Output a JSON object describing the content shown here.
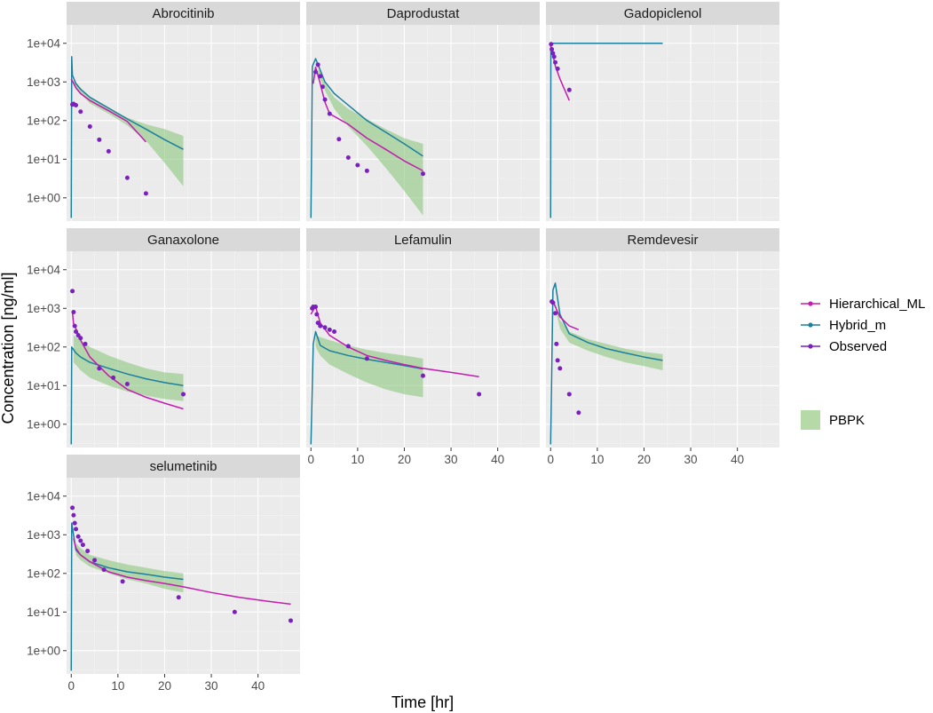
{
  "chart_data": {
    "type": "line",
    "layout": "facet-grid",
    "xlabel": "Time [hr]",
    "ylabel": "Concentration [ng/ml]",
    "y_scale": "log10",
    "ylim": [
      0.25,
      30000
    ],
    "xlim": [
      -1,
      49
    ],
    "y_ticks": [
      {
        "value": 1,
        "label": "1e+00"
      },
      {
        "value": 10,
        "label": "1e+01"
      },
      {
        "value": 100,
        "label": "1e+02"
      },
      {
        "value": 1000,
        "label": "1e+03"
      },
      {
        "value": 10000,
        "label": "1e+04"
      }
    ],
    "x_ticks": [
      {
        "value": 0,
        "label": "0"
      },
      {
        "value": 10,
        "label": "10"
      },
      {
        "value": 20,
        "label": "20"
      },
      {
        "value": 30,
        "label": "30"
      },
      {
        "value": 40,
        "label": "40"
      }
    ],
    "grid": true,
    "legend_position": "right",
    "legend": {
      "lines": [
        {
          "name": "Hierarchical_ML",
          "color": "#c51bb0"
        },
        {
          "name": "Hybrid_m",
          "color": "#1b7f9e"
        },
        {
          "name": "Observed",
          "color": "#7b1fbf"
        }
      ],
      "fill": {
        "name": "PBPK",
        "color": "#8cc77f"
      }
    },
    "panels": [
      {
        "title": "Abrocitinib",
        "hybrid": [
          [
            0,
            0.3
          ],
          [
            0.1,
            4500
          ],
          [
            0.25,
            1500
          ],
          [
            1,
            900
          ],
          [
            2,
            650
          ],
          [
            4,
            400
          ],
          [
            8,
            210
          ],
          [
            12,
            110
          ],
          [
            16,
            60
          ],
          [
            20,
            32
          ],
          [
            24,
            18
          ]
        ],
        "hierarchical": [
          [
            0,
            1200
          ],
          [
            1,
            700
          ],
          [
            2,
            500
          ],
          [
            4,
            330
          ],
          [
            8,
            180
          ],
          [
            12,
            95
          ],
          [
            16,
            28
          ]
        ],
        "observed": [
          [
            0.25,
            260
          ],
          [
            0.5,
            270
          ],
          [
            1,
            250
          ],
          [
            2,
            170
          ],
          [
            4,
            70
          ],
          [
            6,
            32
          ],
          [
            8,
            16
          ],
          [
            12,
            3.3
          ],
          [
            16,
            1.3
          ]
        ],
        "pbpk_upper": [
          [
            0.5,
            1200
          ],
          [
            2,
            700
          ],
          [
            4,
            400
          ],
          [
            8,
            210
          ],
          [
            12,
            120
          ],
          [
            16,
            80
          ],
          [
            20,
            60
          ],
          [
            24,
            40
          ]
        ],
        "pbpk_lower": [
          [
            0.5,
            900
          ],
          [
            2,
            500
          ],
          [
            4,
            280
          ],
          [
            8,
            150
          ],
          [
            12,
            75
          ],
          [
            16,
            30
          ],
          [
            20,
            8
          ],
          [
            24,
            2
          ]
        ]
      },
      {
        "title": "Daprodustat",
        "hybrid": [
          [
            0,
            0.3
          ],
          [
            0.3,
            2500
          ],
          [
            1,
            4000
          ],
          [
            2,
            2000
          ],
          [
            3,
            1000
          ],
          [
            5,
            500
          ],
          [
            8,
            250
          ],
          [
            12,
            100
          ],
          [
            16,
            50
          ],
          [
            20,
            25
          ],
          [
            24,
            12
          ]
        ],
        "hierarchical": [
          [
            0.5,
            900
          ],
          [
            1,
            2400
          ],
          [
            2,
            900
          ],
          [
            3,
            300
          ],
          [
            4,
            150
          ],
          [
            8,
            80
          ],
          [
            12,
            35
          ],
          [
            16,
            18
          ],
          [
            20,
            9
          ],
          [
            24,
            5
          ]
        ],
        "observed": [
          [
            1,
            1800
          ],
          [
            1.5,
            2800
          ],
          [
            2,
            1400
          ],
          [
            2.5,
            750
          ],
          [
            3,
            350
          ],
          [
            4,
            150
          ],
          [
            6,
            33
          ],
          [
            8,
            11
          ],
          [
            10,
            7
          ],
          [
            12,
            5
          ],
          [
            24,
            4.2
          ]
        ],
        "pbpk_upper": [
          [
            1.5,
            2200
          ],
          [
            2,
            1800
          ],
          [
            3,
            900
          ],
          [
            5,
            400
          ],
          [
            8,
            200
          ],
          [
            12,
            110
          ],
          [
            16,
            60
          ],
          [
            20,
            35
          ],
          [
            24,
            25
          ]
        ],
        "pbpk_lower": [
          [
            1.5,
            1500
          ],
          [
            2,
            1200
          ],
          [
            3,
            600
          ],
          [
            5,
            200
          ],
          [
            8,
            70
          ],
          [
            12,
            22
          ],
          [
            16,
            6
          ],
          [
            20,
            1.5
          ],
          [
            24,
            0.35
          ]
        ]
      },
      {
        "title": "Gadopiclenol",
        "hybrid": [
          [
            0,
            0.3
          ],
          [
            0.05,
            10000
          ],
          [
            24,
            10000
          ]
        ],
        "hierarchical": [
          [
            0,
            9000
          ],
          [
            0.5,
            5000
          ],
          [
            1,
            2600
          ],
          [
            2,
            1200
          ],
          [
            4,
            330
          ]
        ],
        "observed": [
          [
            0.1,
            9500
          ],
          [
            0.25,
            7000
          ],
          [
            0.5,
            5500
          ],
          [
            0.75,
            4500
          ],
          [
            1,
            3200
          ],
          [
            1.5,
            2200
          ],
          [
            4,
            620
          ]
        ],
        "pbpk_upper": [],
        "pbpk_lower": []
      },
      {
        "title": "Ganaxolone",
        "hybrid": [
          [
            0,
            0.3
          ],
          [
            0.1,
            100
          ],
          [
            1,
            70
          ],
          [
            2,
            55
          ],
          [
            4,
            40
          ],
          [
            8,
            28
          ],
          [
            12,
            20
          ],
          [
            16,
            15
          ],
          [
            20,
            12
          ],
          [
            24,
            10
          ]
        ],
        "hierarchical": [
          [
            0.25,
            800
          ],
          [
            0.5,
            400
          ],
          [
            1,
            300
          ],
          [
            2,
            150
          ],
          [
            4,
            55
          ],
          [
            8,
            18
          ],
          [
            12,
            8
          ],
          [
            16,
            5
          ],
          [
            20,
            3.5
          ],
          [
            24,
            2.5
          ]
        ],
        "observed": [
          [
            0.25,
            2800
          ],
          [
            0.5,
            800
          ],
          [
            0.75,
            350
          ],
          [
            1,
            250
          ],
          [
            1.5,
            200
          ],
          [
            2,
            170
          ],
          [
            3,
            120
          ],
          [
            6,
            28
          ],
          [
            9,
            16
          ],
          [
            12,
            11
          ],
          [
            24,
            6
          ]
        ],
        "pbpk_upper": [
          [
            0.5,
            200
          ],
          [
            2,
            150
          ],
          [
            4,
            100
          ],
          [
            8,
            60
          ],
          [
            12,
            40
          ],
          [
            16,
            28
          ],
          [
            20,
            22
          ],
          [
            24,
            20
          ]
        ],
        "pbpk_lower": [
          [
            0.5,
            40
          ],
          [
            2,
            25
          ],
          [
            4,
            16
          ],
          [
            8,
            10
          ],
          [
            12,
            7
          ],
          [
            16,
            5.5
          ],
          [
            20,
            4.5
          ],
          [
            24,
            4
          ]
        ]
      },
      {
        "title": "Lefamulin",
        "hybrid": [
          [
            0,
            0.3
          ],
          [
            0.5,
            120
          ],
          [
            1,
            250
          ],
          [
            2,
            110
          ],
          [
            4,
            80
          ],
          [
            8,
            60
          ],
          [
            12,
            48
          ],
          [
            16,
            40
          ],
          [
            20,
            33
          ],
          [
            24,
            27
          ]
        ],
        "hierarchical": [
          [
            0,
            700
          ],
          [
            0.5,
            900
          ],
          [
            1,
            1100
          ],
          [
            2,
            420
          ],
          [
            4,
            200
          ],
          [
            8,
            100
          ],
          [
            12,
            60
          ],
          [
            16,
            45
          ],
          [
            20,
            35
          ],
          [
            24,
            28
          ],
          [
            30,
            22
          ],
          [
            36,
            17
          ]
        ],
        "observed": [
          [
            0.25,
            1000
          ],
          [
            0.5,
            1100
          ],
          [
            1,
            1100
          ],
          [
            1.25,
            700
          ],
          [
            1.5,
            420
          ],
          [
            2,
            350
          ],
          [
            3,
            320
          ],
          [
            4,
            280
          ],
          [
            5,
            250
          ],
          [
            8,
            105
          ],
          [
            12,
            50
          ],
          [
            24,
            18
          ],
          [
            36,
            6
          ]
        ],
        "pbpk_upper": [
          [
            1,
            200
          ],
          [
            2,
            180
          ],
          [
            4,
            150
          ],
          [
            8,
            110
          ],
          [
            12,
            85
          ],
          [
            16,
            70
          ],
          [
            20,
            60
          ],
          [
            24,
            50
          ]
        ],
        "pbpk_lower": [
          [
            1,
            100
          ],
          [
            2,
            60
          ],
          [
            4,
            35
          ],
          [
            8,
            20
          ],
          [
            12,
            12
          ],
          [
            16,
            8
          ],
          [
            20,
            6
          ],
          [
            24,
            5
          ]
        ]
      },
      {
        "title": "Remdevesir",
        "hybrid": [
          [
            0,
            0.3
          ],
          [
            0.5,
            3000
          ],
          [
            1,
            4500
          ],
          [
            2,
            700
          ],
          [
            4,
            220
          ],
          [
            8,
            130
          ],
          [
            12,
            90
          ],
          [
            16,
            70
          ],
          [
            20,
            55
          ],
          [
            24,
            45
          ]
        ],
        "hierarchical": [
          [
            0.5,
            1500
          ],
          [
            1,
            1100
          ],
          [
            2,
            600
          ],
          [
            4,
            350
          ],
          [
            6,
            280
          ]
        ],
        "observed": [
          [
            0.25,
            1500
          ],
          [
            0.5,
            1400
          ],
          [
            1,
            750
          ],
          [
            1.25,
            120
          ],
          [
            1.5,
            45
          ],
          [
            2,
            28
          ],
          [
            4,
            6
          ],
          [
            6,
            2
          ]
        ],
        "pbpk_upper": [
          [
            1,
            1500
          ],
          [
            2,
            500
          ],
          [
            4,
            250
          ],
          [
            8,
            160
          ],
          [
            12,
            120
          ],
          [
            16,
            90
          ],
          [
            20,
            75
          ],
          [
            24,
            65
          ]
        ],
        "pbpk_lower": [
          [
            1,
            1000
          ],
          [
            2,
            300
          ],
          [
            4,
            130
          ],
          [
            8,
            80
          ],
          [
            12,
            55
          ],
          [
            16,
            40
          ],
          [
            20,
            32
          ],
          [
            24,
            25
          ]
        ]
      },
      {
        "title": "selumetinib",
        "hybrid": [
          [
            0,
            0.3
          ],
          [
            0.1,
            2000
          ],
          [
            1,
            400
          ],
          [
            2,
            300
          ],
          [
            4,
            200
          ],
          [
            8,
            140
          ],
          [
            12,
            110
          ],
          [
            16,
            95
          ],
          [
            20,
            80
          ],
          [
            24,
            70
          ]
        ],
        "hierarchical": [
          [
            0.5,
            800
          ],
          [
            1,
            450
          ],
          [
            2,
            300
          ],
          [
            4,
            200
          ],
          [
            8,
            110
          ],
          [
            12,
            80
          ],
          [
            16,
            65
          ],
          [
            20,
            55
          ],
          [
            24,
            45
          ],
          [
            30,
            32
          ],
          [
            36,
            24
          ],
          [
            42,
            19
          ],
          [
            47,
            16
          ]
        ],
        "observed": [
          [
            0.25,
            5000
          ],
          [
            0.5,
            3200
          ],
          [
            0.75,
            2000
          ],
          [
            1,
            1400
          ],
          [
            1.5,
            900
          ],
          [
            2,
            700
          ],
          [
            2.5,
            550
          ],
          [
            3.5,
            380
          ],
          [
            5,
            220
          ],
          [
            7,
            125
          ],
          [
            11,
            62
          ],
          [
            23,
            24
          ],
          [
            35,
            10
          ],
          [
            47,
            6
          ]
        ],
        "pbpk_upper": [
          [
            1,
            600
          ],
          [
            2,
            450
          ],
          [
            4,
            300
          ],
          [
            8,
            220
          ],
          [
            12,
            170
          ],
          [
            16,
            140
          ],
          [
            20,
            115
          ],
          [
            24,
            100
          ]
        ],
        "pbpk_lower": [
          [
            1,
            300
          ],
          [
            2,
            220
          ],
          [
            4,
            150
          ],
          [
            8,
            100
          ],
          [
            12,
            70
          ],
          [
            16,
            55
          ],
          [
            20,
            40
          ],
          [
            24,
            32
          ]
        ]
      }
    ]
  }
}
